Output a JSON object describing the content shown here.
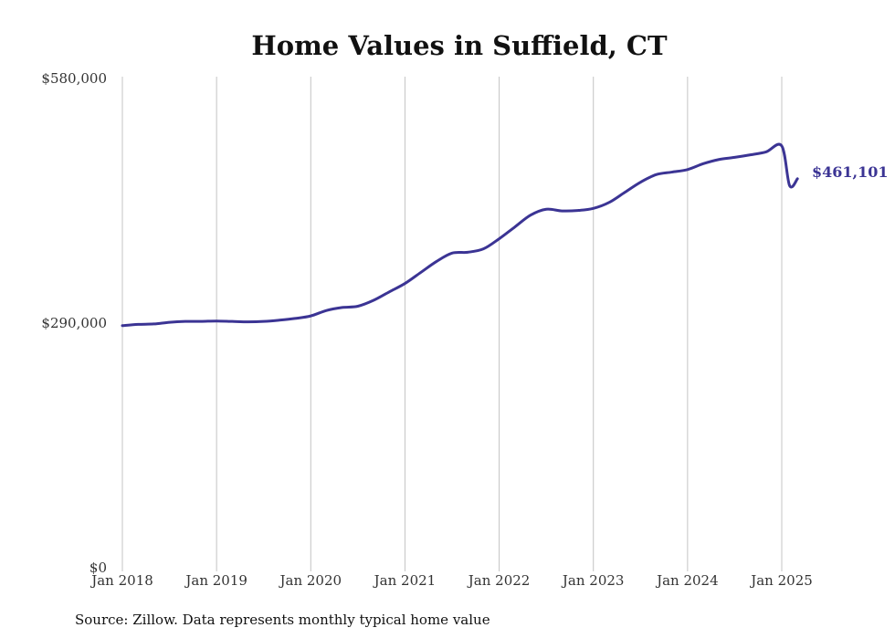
{
  "chart_data": {
    "type": "line",
    "title": "Home Values in Suffield, CT",
    "xlabel": "",
    "ylabel": "",
    "ylim": [
      0,
      580000
    ],
    "yticks": [
      {
        "value": 0,
        "label": "$0"
      },
      {
        "value": 290000,
        "label": "$290,000"
      },
      {
        "value": 580000,
        "label": "$580,000"
      }
    ],
    "xticks": [
      {
        "value": "2018-01",
        "label": "Jan 2018"
      },
      {
        "value": "2019-01",
        "label": "Jan 2019"
      },
      {
        "value": "2020-01",
        "label": "Jan 2020"
      },
      {
        "value": "2021-01",
        "label": "Jan 2021"
      },
      {
        "value": "2022-01",
        "label": "Jan 2022"
      },
      {
        "value": "2023-01",
        "label": "Jan 2023"
      },
      {
        "value": "2024-01",
        "label": "Jan 2024"
      },
      {
        "value": "2025-01",
        "label": "Jan 2025"
      }
    ],
    "grid": "vertical",
    "line_color": "#3b3494",
    "end_label": "$461,101",
    "series": [
      {
        "x": [
          "2018-01",
          "2018-03",
          "2018-05",
          "2018-07",
          "2018-09",
          "2018-11",
          "2019-01",
          "2019-03",
          "2019-05",
          "2019-07",
          "2019-09",
          "2019-11",
          "2020-01",
          "2020-03",
          "2020-05",
          "2020-07",
          "2020-09",
          "2020-11",
          "2021-01",
          "2021-03",
          "2021-05",
          "2021-07",
          "2021-09",
          "2021-11",
          "2022-01",
          "2022-03",
          "2022-05",
          "2022-07",
          "2022-09",
          "2022-11",
          "2023-01",
          "2023-03",
          "2023-05",
          "2023-07",
          "2023-09",
          "2023-11",
          "2024-01",
          "2024-03",
          "2024-05",
          "2024-07",
          "2024-09",
          "2024-11",
          "2025-01",
          "2025-02",
          "2025-03"
        ],
        "y": [
          287000,
          288500,
          289000,
          291000,
          292000,
          292000,
          292500,
          292000,
          291500,
          292000,
          293500,
          295500,
          298500,
          305000,
          308500,
          310000,
          317000,
          327000,
          337000,
          350000,
          363000,
          373000,
          374000,
          378000,
          390000,
          404000,
          418000,
          425000,
          423000,
          423500,
          426000,
          433000,
          445000,
          457000,
          466000,
          469000,
          472000,
          479000,
          484000,
          486500,
          489500,
          493000,
          500000,
          453000,
          461101
        ]
      }
    ]
  },
  "footer": {
    "source": "Source: Zillow. Data represents monthly typical home value"
  }
}
